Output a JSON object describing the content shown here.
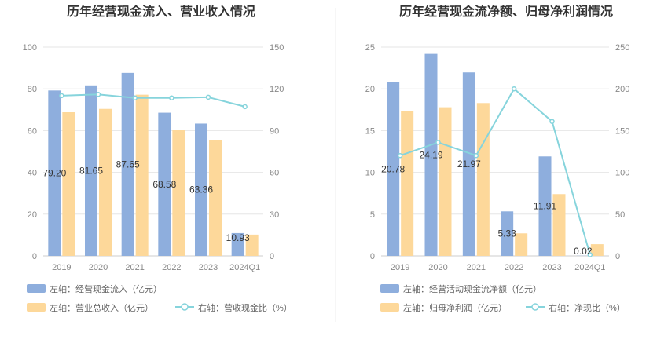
{
  "chart_data": [
    {
      "type": "bar",
      "title": "历年经营现金流入、营业收入情况",
      "categories": [
        "2019",
        "2020",
        "2021",
        "2022",
        "2023",
        "2024Q1"
      ],
      "left_axis": {
        "min": 0,
        "max": 100,
        "ticks": [
          "0",
          "20",
          "40",
          "60",
          "80",
          "100"
        ]
      },
      "right_axis": {
        "min": 0,
        "max": 150,
        "ticks": [
          "0",
          "30",
          "60",
          "90",
          "120",
          "150"
        ]
      },
      "series": [
        {
          "name": "左轴：经营现金流入（亿元）",
          "kind": "bar",
          "axis": "left",
          "color": "#8eaedd",
          "values": [
            79.2,
            81.65,
            87.65,
            68.58,
            63.36,
            10.93
          ],
          "labels": [
            "79.20",
            "81.65",
            "87.65",
            "68.58",
            "63.36",
            "10.93"
          ]
        },
        {
          "name": "左轴：营业总收入（亿元）",
          "kind": "bar",
          "axis": "left",
          "color": "#fdd89a",
          "values": [
            68.8,
            70.4,
            77.2,
            60.4,
            55.6,
            10.2
          ]
        },
        {
          "name": "右轴：营收现金比（%）",
          "kind": "line",
          "axis": "right",
          "color": "#86d4dc",
          "values": [
            115.1,
            116.0,
            113.5,
            113.5,
            114.0,
            107.2
          ]
        }
      ]
    },
    {
      "type": "bar",
      "title": "历年经营现金流净额、归母净利润情况",
      "categories": [
        "2019",
        "2020",
        "2021",
        "2022",
        "2023",
        "2024Q1"
      ],
      "left_axis": {
        "min": 0,
        "max": 25,
        "ticks": [
          "0",
          "5",
          "10",
          "15",
          "20",
          "25"
        ]
      },
      "right_axis": {
        "min": 0,
        "max": 250,
        "ticks": [
          "0",
          "50",
          "100",
          "150",
          "200",
          "250"
        ]
      },
      "series": [
        {
          "name": "左轴：经营活动现金流净额（亿元）",
          "kind": "bar",
          "axis": "left",
          "color": "#8eaedd",
          "values": [
            20.78,
            24.19,
            21.97,
            5.33,
            11.91,
            0.02
          ],
          "labels": [
            "20.78",
            "24.19",
            "21.97",
            "5.33",
            "11.91",
            "0.02"
          ]
        },
        {
          "name": "左轴：归母净利润（亿元）",
          "kind": "bar",
          "axis": "left",
          "color": "#fdd89a",
          "values": [
            17.3,
            17.8,
            18.3,
            2.7,
            7.4,
            1.4
          ]
        },
        {
          "name": "右轴：净现比（%）",
          "kind": "line",
          "axis": "right",
          "color": "#86d4dc",
          "values": [
            120.1,
            135.9,
            120.1,
            200.0,
            161.0,
            1.4
          ]
        }
      ]
    }
  ]
}
